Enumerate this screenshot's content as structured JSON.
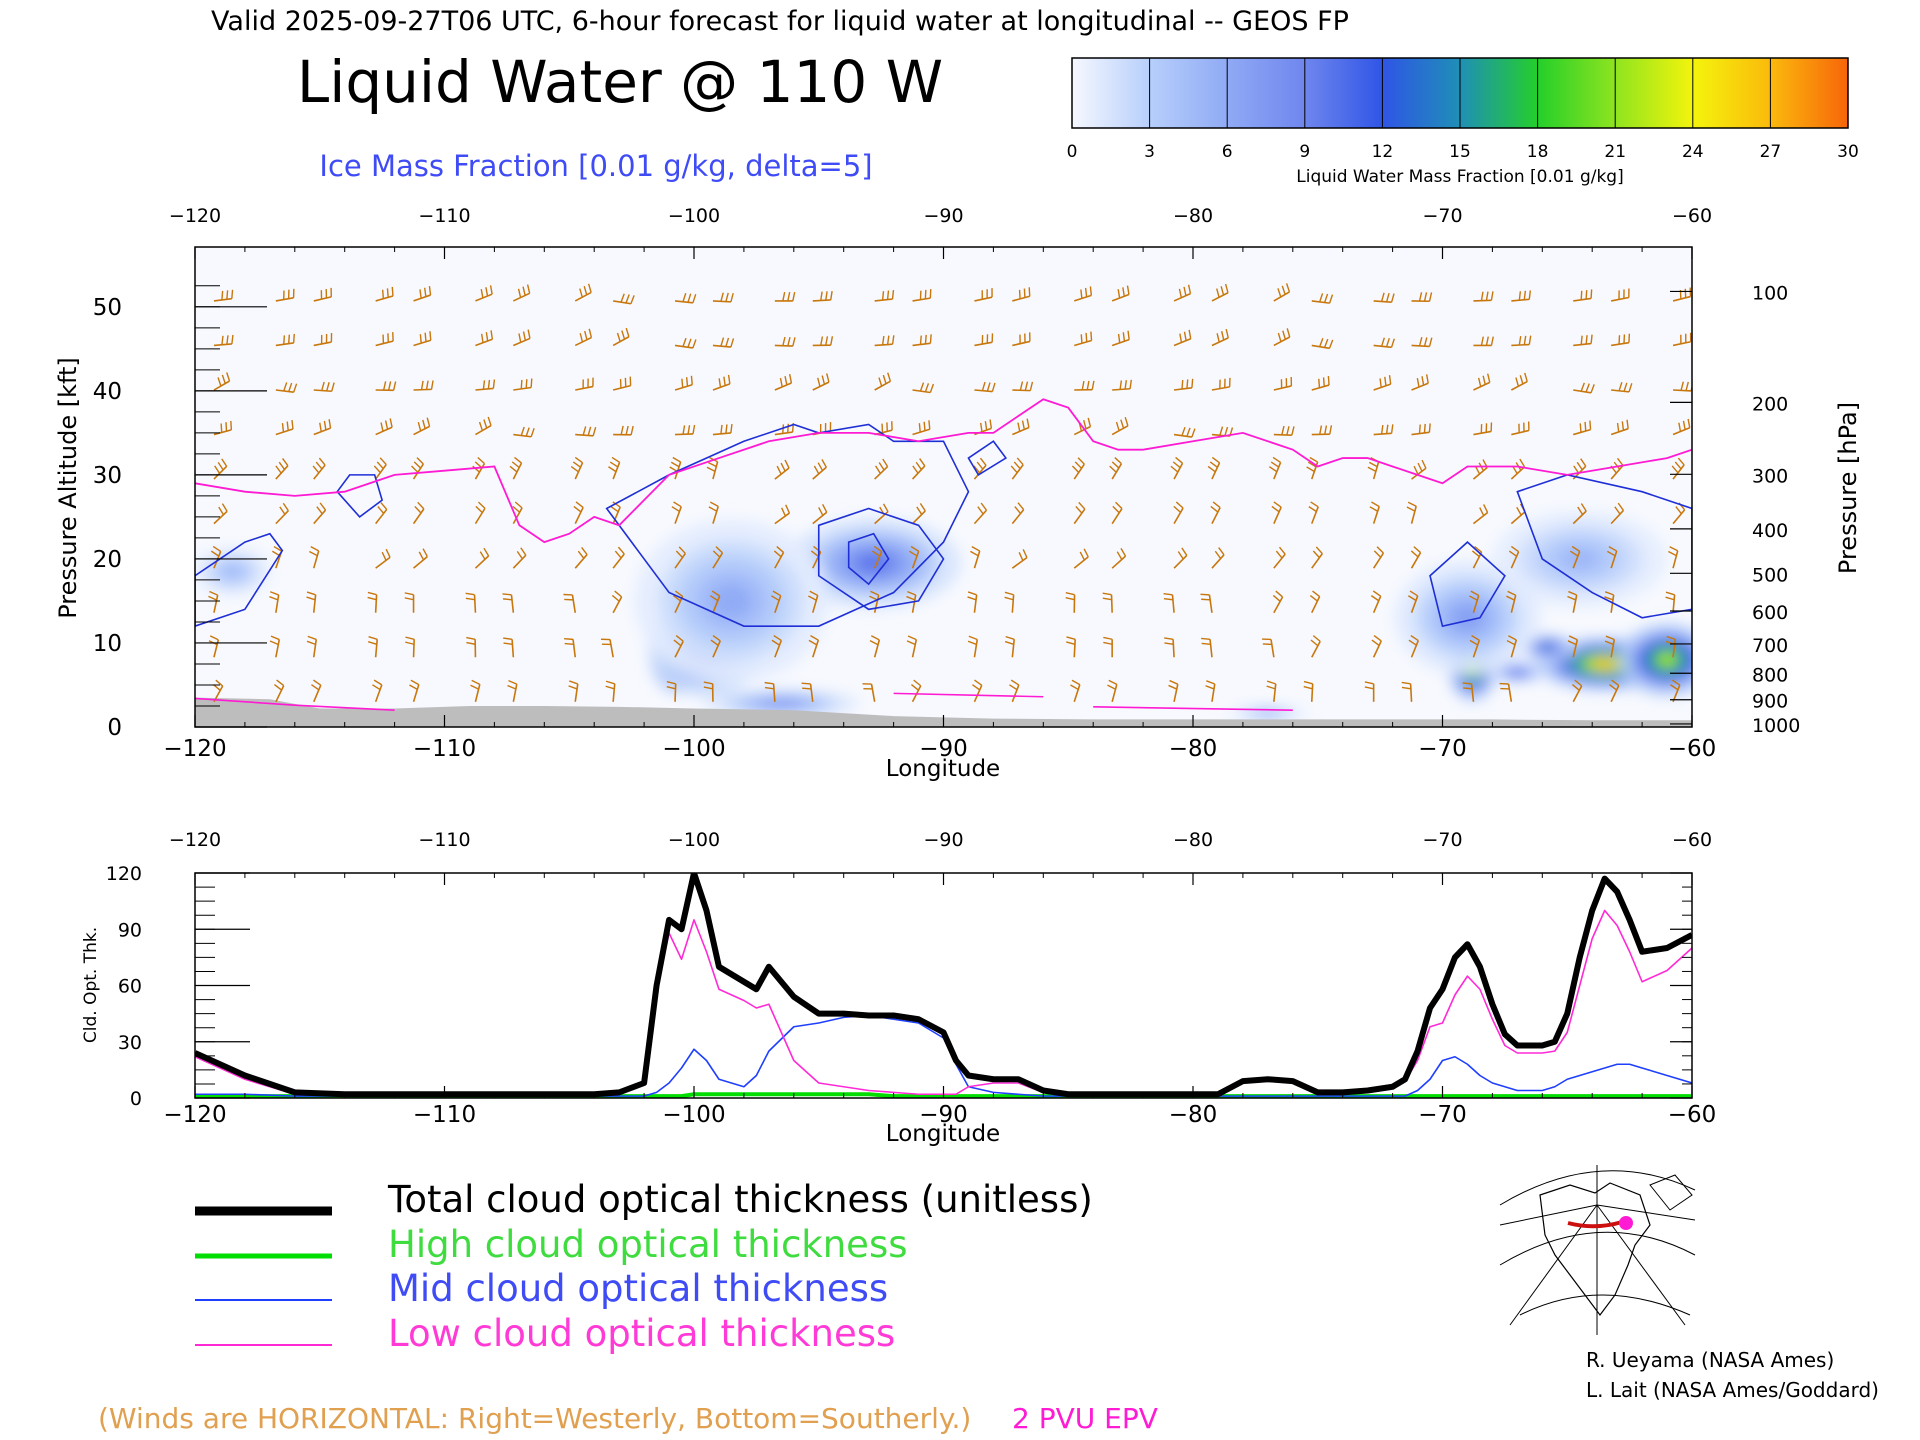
{
  "header": "Valid 2025-09-27T06 UTC, 6-hour forecast for liquid water at longitudinal -- GEOS FP",
  "title": "Liquid Water @ 110 W",
  "subtitle": "Ice Mass Fraction [0.01 g/kg, delta=5]",
  "colorbar": {
    "label": "Liquid Water Mass Fraction [0.01 g/kg]",
    "ticks": [
      "0",
      "3",
      "6",
      "9",
      "12",
      "15",
      "18",
      "21",
      "24",
      "27",
      "30"
    ],
    "colors": [
      "#f6f8ff",
      "#b7cffb",
      "#90aaf5",
      "#6f86ee",
      "#2f55e6",
      "#1f8fb6",
      "#24cf2a",
      "#8fe41f",
      "#f4f40c",
      "#fbb90c",
      "#f7650a"
    ]
  },
  "colors": {
    "ice_contour": "#1f2fd6",
    "epv": "#ff1ad4",
    "wind": "#c8770c",
    "ground": "#bdbdbd",
    "high": "#00dd00",
    "mid": "#1f3fff",
    "low": "#ff2ad6"
  },
  "top_panel": {
    "x_ticks": [
      "−120",
      "−110",
      "−100",
      "−90",
      "−80",
      "−70",
      "−60"
    ],
    "y_left_ticks": [
      "0",
      "10",
      "20",
      "30",
      "40",
      "50"
    ],
    "y_right_ticks": [
      "100",
      "200",
      "300",
      "400",
      "500",
      "600",
      "700",
      "800",
      "900",
      "1000"
    ],
    "xlabel": "Longitude",
    "ylabel_left": "Pressure Altitude [kft]",
    "ylabel_right": "Pressure [hPa]"
  },
  "bottom_panel": {
    "x_ticks": [
      "−120",
      "−110",
      "−100",
      "−90",
      "−80",
      "−70",
      "−60"
    ],
    "y_ticks": [
      "0",
      "30",
      "60",
      "90",
      "120"
    ],
    "xlabel": "Longitude",
    "ylabel": "Cld. Opt. Thk."
  },
  "legend": {
    "total": "Total cloud optical thickness (unitless)",
    "high": "High cloud optical thickness",
    "mid": "Mid cloud optical thickness",
    "low": "Low cloud optical thickness"
  },
  "notes": {
    "winds": "(Winds are HORIZONTAL: Right=Westerly, Bottom=Southerly.)",
    "epv": "2 PVU EPV"
  },
  "credits": [
    "R. Ueyama (NASA Ames)",
    "L. Lait (NASA Ames/Goddard)"
  ],
  "chart_data": [
    {
      "type": "heatmap",
      "title": "Liquid Water @ 110 W",
      "subtitle": "Ice Mass Fraction [0.01 g/kg, delta=5]",
      "xlabel": "Longitude",
      "ylabel": "Pressure Altitude [kft]",
      "y2label": "Pressure [hPa]",
      "xlim": [
        -120,
        -60
      ],
      "ylim": [
        0,
        55
      ],
      "colorbar_range": [
        0,
        30
      ],
      "liquid_water_blobs": [
        {
          "lon": -100.6,
          "alt": 8.5,
          "value": 28,
          "lon_sd": 0.6,
          "alt_sd": 2.3
        },
        {
          "lon": -99.5,
          "alt": 9.5,
          "value": 14,
          "lon_sd": 1.2,
          "alt_sd": 3.0
        },
        {
          "lon": -92.8,
          "alt": 19.5,
          "value": 10,
          "lon_sd": 1.8,
          "alt_sd": 2.8
        },
        {
          "lon": -96.5,
          "alt": 2.8,
          "value": 8,
          "lon_sd": 1.6,
          "alt_sd": 0.9
        },
        {
          "lon": -98.5,
          "alt": 15.0,
          "value": 6,
          "lon_sd": 2.0,
          "alt_sd": 5.0
        },
        {
          "lon": -68.8,
          "alt": 7.0,
          "value": 24,
          "lon_sd": 0.5,
          "alt_sd": 2.0
        },
        {
          "lon": -63.5,
          "alt": 7.5,
          "value": 27,
          "lon_sd": 1.4,
          "alt_sd": 1.6
        },
        {
          "lon": -61.0,
          "alt": 8.0,
          "value": 22,
          "lon_sd": 1.0,
          "alt_sd": 2.2
        },
        {
          "lon": -65.8,
          "alt": 9.5,
          "value": 14,
          "lon_sd": 0.6,
          "alt_sd": 0.8
        },
        {
          "lon": -67.0,
          "alt": 6.5,
          "value": 12,
          "lon_sd": 0.6,
          "alt_sd": 0.6
        },
        {
          "lon": -64.5,
          "alt": 20.0,
          "value": 5,
          "lon_sd": 1.8,
          "alt_sd": 3.0
        },
        {
          "lon": -69.0,
          "alt": 13.0,
          "value": 7,
          "lon_sd": 1.5,
          "alt_sd": 3.5
        },
        {
          "lon": -77.0,
          "alt": 1.6,
          "value": 7,
          "lon_sd": 0.8,
          "alt_sd": 0.4
        },
        {
          "lon": -118.5,
          "alt": 18.5,
          "value": 5,
          "lon_sd": 0.8,
          "alt_sd": 1.5
        }
      ],
      "ice_contours": [
        {
          "lon": [
            -120,
            -118,
            -117,
            -116.5,
            -118,
            -120
          ],
          "alt": [
            18,
            22,
            23,
            21,
            14,
            12
          ]
        },
        {
          "lon": [
            -113.8,
            -112.8,
            -112.5,
            -113.4,
            -114.3,
            -113.8
          ],
          "alt": [
            30,
            30,
            27,
            25,
            28,
            30
          ]
        },
        {
          "lon": [
            -103.5,
            -101,
            -98,
            -96,
            -95,
            -93,
            -92,
            -90,
            -89,
            -90,
            -92,
            -95,
            -98,
            -101,
            -103.5
          ],
          "alt": [
            26,
            30,
            34,
            36,
            35,
            36,
            34,
            34,
            28,
            22,
            16,
            12,
            12,
            16,
            26
          ]
        },
        {
          "lon": [
            -95,
            -93,
            -91,
            -90,
            -91,
            -93,
            -95
          ],
          "alt": [
            24,
            26,
            24,
            20,
            15,
            14,
            18
          ]
        },
        {
          "lon": [
            -93.8,
            -92.8,
            -92.2,
            -93,
            -93.8
          ],
          "alt": [
            22,
            23,
            20,
            17,
            19
          ]
        },
        {
          "lon": [
            -67,
            -65,
            -62,
            -60,
            -60,
            -62,
            -64,
            -66,
            -67
          ],
          "alt": [
            28,
            30,
            28,
            26,
            14,
            13,
            16,
            20,
            28
          ]
        },
        {
          "lon": [
            -70.5,
            -69,
            -67.5,
            -68.5,
            -70,
            -70.5
          ],
          "alt": [
            18,
            22,
            18,
            13,
            12,
            18
          ]
        },
        {
          "lon": [
            -89,
            -88,
            -87.5,
            -88.6,
            -89
          ],
          "alt": [
            32,
            34,
            32,
            30,
            32
          ]
        }
      ],
      "epv_2pvu": {
        "lon": [
          -120,
          -118,
          -116,
          -114,
          -112,
          -110,
          -108,
          -107,
          -106,
          -105,
          -104,
          -103,
          -101,
          -99,
          -97,
          -95,
          -93,
          -91,
          -89,
          -88,
          -87,
          -86,
          -85,
          -84,
          -83,
          -82,
          -80,
          -78,
          -76,
          -75,
          -74,
          -73,
          -72,
          -71,
          -70,
          -69,
          -67,
          -65,
          -63,
          -61,
          -60
        ],
        "alt": [
          29,
          28,
          27.5,
          28,
          30,
          30.5,
          31,
          24,
          22,
          23,
          25,
          24,
          30,
          32,
          34,
          35,
          35,
          34,
          35,
          35,
          37,
          39,
          38,
          34,
          33,
          33,
          34,
          35,
          33,
          31,
          32,
          32,
          31,
          30,
          29,
          31,
          31,
          30,
          31,
          32,
          33
        ]
      },
      "wind_columns_lon": [
        -119,
        -117,
        -115,
        -113,
        -111,
        -109,
        -107,
        -105,
        -103,
        -101,
        -99,
        -97,
        -95,
        -93,
        -91,
        -89,
        -87,
        -85,
        -83,
        -81,
        -79,
        -77,
        -75,
        -73,
        -71,
        -69,
        -67,
        -65,
        -63,
        -61
      ]
    },
    {
      "type": "line",
      "xlabel": "Longitude",
      "ylabel": "Cld. Opt. Thk.",
      "xlim": [
        -120,
        -60
      ],
      "ylim": [
        0,
        120
      ],
      "x": [
        -120,
        -118,
        -116,
        -114,
        -112,
        -110,
        -108,
        -106,
        -104,
        -103,
        -102,
        -101.5,
        -101,
        -100.5,
        -100,
        -99.5,
        -99,
        -98,
        -97.5,
        -97,
        -96,
        -95,
        -94,
        -93,
        -92,
        -91,
        -90,
        -89.5,
        -89,
        -88,
        -87,
        -86,
        -85,
        -84,
        -82,
        -80,
        -79,
        -78,
        -77,
        -76,
        -75,
        -74,
        -73,
        -72,
        -71.5,
        -71,
        -70.5,
        -70,
        -69.5,
        -69,
        -68.5,
        -68,
        -67.5,
        -67,
        -66,
        -65.5,
        -65,
        -64.5,
        -64,
        -63.5,
        -63,
        -62.5,
        -62,
        -61,
        -60
      ],
      "series": [
        {
          "name": "Total cloud optical thickness (unitless)",
          "values": [
            24,
            12,
            3,
            2,
            2,
            2,
            2,
            2,
            2,
            3,
            8,
            60,
            95,
            90,
            120,
            100,
            70,
            62,
            58,
            70,
            54,
            45,
            45,
            44,
            44,
            42,
            35,
            20,
            12,
            10,
            10,
            4,
            2,
            2,
            2,
            2,
            2,
            9,
            10,
            9,
            3,
            3,
            4,
            6,
            10,
            25,
            48,
            58,
            75,
            82,
            70,
            50,
            34,
            28,
            28,
            30,
            45,
            75,
            100,
            117,
            110,
            95,
            78,
            80,
            87
          ]
        },
        {
          "name": "High cloud optical thickness",
          "values": [
            1,
            1,
            1,
            1,
            1,
            1,
            1,
            1,
            1,
            1,
            1,
            1,
            1,
            1,
            2,
            2,
            2,
            2,
            2,
            2,
            2,
            2,
            2,
            2,
            1,
            1,
            1,
            1,
            1,
            1,
            1,
            1,
            1,
            1,
            1,
            1,
            1,
            1,
            1,
            1,
            1,
            1,
            1,
            1,
            1,
            1,
            1,
            1,
            1,
            1,
            1,
            1,
            1,
            1,
            1,
            1,
            1,
            1,
            1,
            1,
            1,
            1,
            1,
            1,
            1
          ]
        },
        {
          "name": "Mid cloud optical thickness",
          "values": [
            2,
            2,
            1,
            1,
            1,
            1,
            1,
            1,
            1,
            1,
            1,
            3,
            8,
            16,
            26,
            20,
            10,
            6,
            12,
            25,
            38,
            40,
            43,
            44,
            42,
            40,
            32,
            18,
            6,
            3,
            2,
            1,
            1,
            1,
            1,
            1,
            1,
            1,
            1,
            1,
            1,
            1,
            1,
            1,
            1,
            4,
            10,
            20,
            22,
            18,
            12,
            8,
            6,
            4,
            4,
            6,
            10,
            12,
            14,
            16,
            18,
            18,
            16,
            12,
            8
          ]
        },
        {
          "name": "Low cloud optical thickness",
          "values": [
            22,
            10,
            2,
            1,
            1,
            1,
            1,
            1,
            1,
            2,
            7,
            56,
            88,
            74,
            95,
            78,
            58,
            52,
            48,
            50,
            20,
            8,
            6,
            4,
            3,
            2,
            2,
            2,
            6,
            8,
            8,
            3,
            1,
            1,
            1,
            1,
            1,
            8,
            9,
            8,
            2,
            2,
            3,
            5,
            9,
            20,
            38,
            40,
            55,
            65,
            58,
            42,
            28,
            24,
            24,
            25,
            35,
            60,
            85,
            100,
            92,
            78,
            62,
            68,
            80
          ]
        }
      ]
    }
  ]
}
